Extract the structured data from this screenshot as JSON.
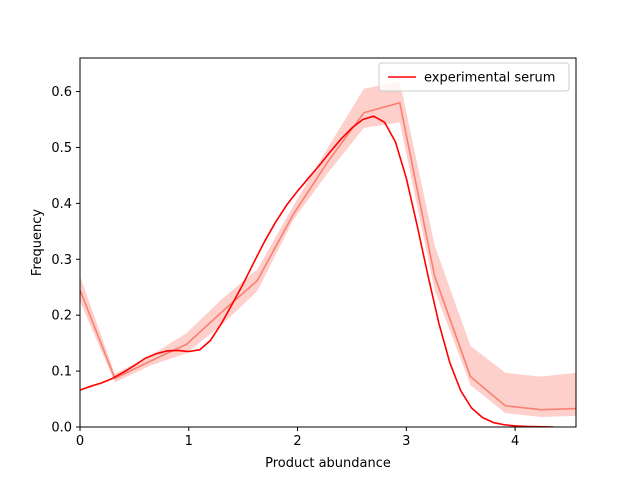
{
  "chart_data": {
    "type": "line",
    "title": "",
    "xlabel": "Product abundance",
    "ylabel": "Frequency",
    "xlim": [
      0,
      4.56
    ],
    "ylim": [
      0,
      0.66
    ],
    "xticks": [
      0,
      1,
      2,
      3,
      4
    ],
    "yticks": [
      0.0,
      0.1,
      0.2,
      0.3,
      0.4,
      0.5,
      0.6
    ],
    "xtick_labels": [
      "0",
      "1",
      "2",
      "3",
      "4"
    ],
    "ytick_labels": [
      "0.0",
      "0.1",
      "0.2",
      "0.3",
      "0.4",
      "0.5",
      "0.6"
    ],
    "legend": {
      "placement": "top-right",
      "entries": [
        "experimental serum"
      ]
    },
    "grid": false,
    "series": [
      {
        "name": "experimental serum",
        "style": "smooth-line",
        "color": "#ff0000",
        "x": [
          0,
          0.1,
          0.2,
          0.3,
          0.4,
          0.5,
          0.6,
          0.7,
          0.8,
          0.9,
          1.0,
          1.1,
          1.2,
          1.3,
          1.4,
          1.5,
          1.6,
          1.7,
          1.8,
          1.9,
          2.0,
          2.1,
          2.2,
          2.3,
          2.4,
          2.5,
          2.6,
          2.7,
          2.8,
          2.9,
          3.0,
          3.1,
          3.2,
          3.3,
          3.4,
          3.5,
          3.6,
          3.7,
          3.8,
          3.9,
          4.0,
          4.1,
          4.2,
          4.35
        ],
        "y": [
          0.066,
          0.073,
          0.079,
          0.087,
          0.098,
          0.11,
          0.123,
          0.131,
          0.136,
          0.137,
          0.135,
          0.138,
          0.155,
          0.185,
          0.22,
          0.256,
          0.295,
          0.333,
          0.367,
          0.397,
          0.422,
          0.445,
          0.468,
          0.492,
          0.515,
          0.535,
          0.55,
          0.556,
          0.545,
          0.51,
          0.445,
          0.36,
          0.27,
          0.185,
          0.115,
          0.065,
          0.034,
          0.017,
          0.008,
          0.004,
          0.002,
          0.001,
          0.0005,
          0.0
        ]
      },
      {
        "style": "binned-line-with-band",
        "color": "#fa8072",
        "band_color": "#fdd0cc",
        "x": [
          0.0,
          0.32,
          0.65,
          0.98,
          1.3,
          1.63,
          1.96,
          2.28,
          2.61,
          2.94,
          3.26,
          3.59,
          3.91,
          4.24,
          4.56
        ],
        "y": [
          0.245,
          0.087,
          0.118,
          0.148,
          0.205,
          0.262,
          0.38,
          0.475,
          0.562,
          0.58,
          0.27,
          0.09,
          0.038,
          0.031,
          0.033
        ],
        "lower": [
          0.225,
          0.08,
          0.11,
          0.132,
          0.182,
          0.243,
          0.37,
          0.455,
          0.535,
          0.545,
          0.245,
          0.075,
          0.025,
          0.018,
          0.02
        ],
        "upper": [
          0.27,
          0.095,
          0.128,
          0.168,
          0.228,
          0.282,
          0.395,
          0.5,
          0.605,
          0.618,
          0.325,
          0.145,
          0.097,
          0.09,
          0.097
        ]
      }
    ]
  }
}
